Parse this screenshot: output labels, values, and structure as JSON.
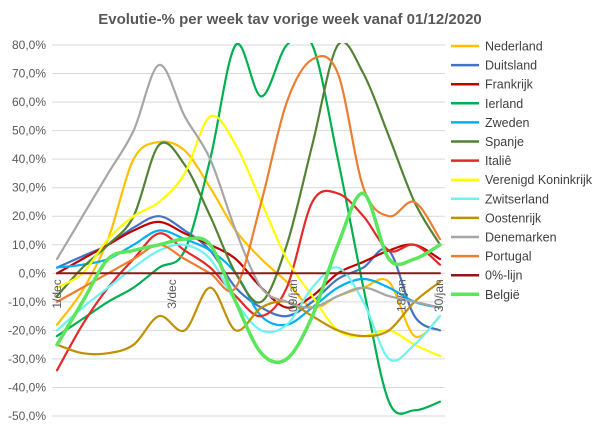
{
  "chart_data": {
    "type": "line",
    "title": "Evolutie-% per week tav vorige week vanaf 01/12/2020",
    "xlabel": "",
    "ylabel": "",
    "ylim": [
      -0.5,
      0.8
    ],
    "y_tick_values": [
      -0.5,
      -0.4,
      -0.3,
      -0.2,
      -0.1,
      0.0,
      0.1,
      0.2,
      0.3,
      0.4,
      0.5,
      0.6,
      0.7,
      0.8
    ],
    "y_tick_labels": [
      "-50,0%",
      "-40,0%",
      "-30,0%",
      "-20,0%",
      "-10,0%",
      "0,0%",
      "10,0%",
      "20,0%",
      "30,0%",
      "40,0%",
      "50,0%",
      "60,0%",
      "70,0%",
      "80,0%"
    ],
    "x_range": [
      0,
      60
    ],
    "x_ticks": [
      {
        "x": 0,
        "label": "1/dec"
      },
      {
        "x": 18,
        "label": "3/dec"
      },
      {
        "x": 37,
        "label": "09/jan"
      },
      {
        "x": 54,
        "label": "18/jan"
      },
      {
        "x": 66,
        "label": "30/jan"
      }
    ],
    "grid": true,
    "legend_position": "right",
    "series": [
      {
        "name": "Nederland",
        "color": "#FFC000",
        "x": [
          0,
          4,
          8,
          12,
          16,
          20,
          24,
          28,
          32,
          36,
          40,
          44,
          48,
          52,
          56,
          60
        ],
        "values": [
          -0.18,
          -0.06,
          0.12,
          0.4,
          0.46,
          0.43,
          0.3,
          0.15,
          0.05,
          -0.03,
          -0.12,
          -0.08,
          -0.05,
          -0.03,
          -0.22,
          -0.15
        ]
      },
      {
        "name": "Duitsland",
        "color": "#4472C4",
        "x": [
          0,
          4,
          8,
          12,
          16,
          20,
          24,
          28,
          32,
          36,
          40,
          44,
          48,
          52,
          56,
          60
        ],
        "values": [
          0.02,
          0.06,
          0.1,
          0.16,
          0.2,
          0.15,
          0.08,
          -0.05,
          -0.12,
          -0.15,
          -0.1,
          -0.02,
          0.02,
          0.08,
          -0.15,
          -0.2
        ]
      },
      {
        "name": "Frankrijk",
        "color": "#C00000",
        "x": [
          0,
          4,
          8,
          12,
          16,
          20,
          24,
          28,
          32,
          36,
          40,
          44,
          48,
          52,
          56,
          60
        ],
        "values": [
          0.0,
          0.05,
          0.1,
          0.15,
          0.18,
          0.14,
          0.1,
          0.05,
          -0.05,
          -0.12,
          -0.08,
          0.0,
          0.04,
          0.08,
          0.1,
          0.05
        ]
      },
      {
        "name": "Ierland",
        "color": "#00B050",
        "x": [
          0,
          4,
          8,
          12,
          16,
          20,
          24,
          28,
          32,
          36,
          40,
          44,
          48,
          52,
          56,
          60
        ],
        "values": [
          -0.22,
          -0.16,
          -0.1,
          -0.05,
          0.02,
          0.08,
          0.4,
          0.8,
          0.62,
          0.8,
          0.8,
          0.4,
          -0.05,
          -0.45,
          -0.48,
          -0.45
        ]
      },
      {
        "name": "Zweden",
        "color": "#00B0F0",
        "x": [
          0,
          4,
          8,
          12,
          16,
          20,
          24,
          28,
          32,
          36,
          40,
          44,
          48,
          52,
          56,
          60
        ],
        "values": [
          0.02,
          0.03,
          0.05,
          0.1,
          0.15,
          0.12,
          0.08,
          0.0,
          -0.15,
          -0.18,
          -0.12,
          -0.05,
          -0.02,
          -0.05,
          -0.1,
          -0.12
        ]
      },
      {
        "name": "Spanje",
        "color": "#548235",
        "x": [
          0,
          4,
          8,
          12,
          16,
          20,
          24,
          28,
          32,
          36,
          40,
          44,
          48,
          52,
          56,
          60
        ],
        "values": [
          -0.08,
          0.02,
          0.1,
          0.2,
          0.45,
          0.38,
          0.2,
          0.0,
          -0.1,
          0.1,
          0.45,
          0.8,
          0.7,
          0.48,
          0.25,
          0.1
        ]
      },
      {
        "name": "Italiê",
        "color": "#E32929",
        "x": [
          0,
          4,
          8,
          12,
          16,
          20,
          24,
          28,
          32,
          36,
          40,
          44,
          48,
          52,
          56,
          60
        ],
        "values": [
          -0.34,
          -0.18,
          -0.05,
          0.05,
          0.14,
          0.08,
          0.02,
          -0.08,
          -0.15,
          -0.05,
          0.25,
          0.28,
          0.2,
          0.08,
          0.1,
          0.03
        ]
      },
      {
        "name": "Verenigd Koninkrijk",
        "color": "#FFFF00",
        "x": [
          0,
          4,
          8,
          12,
          16,
          20,
          24,
          28,
          32,
          36,
          40,
          44,
          48,
          52,
          56,
          60
        ],
        "values": [
          -0.05,
          0.0,
          0.12,
          0.2,
          0.25,
          0.35,
          0.55,
          0.45,
          0.25,
          0.05,
          -0.08,
          -0.2,
          -0.22,
          -0.2,
          -0.25,
          -0.29
        ]
      },
      {
        "name": "Zwitserland",
        "color": "#6DF2F2",
        "x": [
          0,
          4,
          8,
          12,
          16,
          20,
          24,
          28,
          32,
          36,
          40,
          44,
          48,
          52,
          56,
          60
        ],
        "values": [
          -0.2,
          -0.12,
          -0.05,
          0.02,
          0.08,
          0.1,
          0.05,
          -0.1,
          -0.2,
          -0.18,
          -0.05,
          0.02,
          -0.1,
          -0.3,
          -0.25,
          -0.15
        ]
      },
      {
        "name": "Oostenrijk",
        "color": "#BF9000",
        "x": [
          0,
          4,
          8,
          12,
          16,
          20,
          24,
          28,
          32,
          36,
          40,
          44,
          48,
          52,
          56,
          60
        ],
        "values": [
          -0.25,
          -0.28,
          -0.28,
          -0.25,
          -0.15,
          -0.2,
          -0.05,
          -0.2,
          -0.12,
          -0.1,
          -0.15,
          -0.2,
          -0.22,
          -0.2,
          -0.1,
          -0.03
        ]
      },
      {
        "name": "Denemarken",
        "color": "#A6A6A6",
        "x": [
          0,
          4,
          8,
          12,
          16,
          20,
          24,
          28,
          32,
          36,
          40,
          44,
          48,
          52,
          56,
          60
        ],
        "values": [
          0.05,
          0.2,
          0.35,
          0.5,
          0.73,
          0.55,
          0.4,
          0.15,
          -0.05,
          -0.1,
          -0.12,
          -0.08,
          -0.05,
          -0.08,
          -0.1,
          -0.12
        ]
      },
      {
        "name": "Portugal",
        "color": "#ED7D31",
        "x": [
          0,
          4,
          8,
          12,
          16,
          20,
          24,
          28,
          32,
          36,
          40,
          44,
          48,
          52,
          56,
          60
        ],
        "values": [
          -0.1,
          -0.05,
          0.0,
          0.05,
          0.1,
          0.05,
          0.0,
          -0.05,
          0.25,
          0.6,
          0.75,
          0.7,
          0.3,
          0.2,
          0.25,
          0.12
        ]
      },
      {
        "name": "0%-lijn",
        "color": "#8B1A1A",
        "x": [
          0,
          60
        ],
        "values": [
          0.0,
          0.0
        ]
      },
      {
        "name": "België",
        "color": "#5CE65C",
        "x": [
          0,
          4,
          8,
          12,
          16,
          20,
          24,
          28,
          32,
          36,
          40,
          44,
          48,
          52,
          56,
          60
        ],
        "values": [
          -0.25,
          -0.1,
          0.05,
          0.08,
          0.1,
          0.12,
          0.1,
          -0.1,
          -0.28,
          -0.3,
          -0.15,
          0.1,
          0.28,
          0.05,
          0.05,
          0.1
        ]
      }
    ]
  }
}
